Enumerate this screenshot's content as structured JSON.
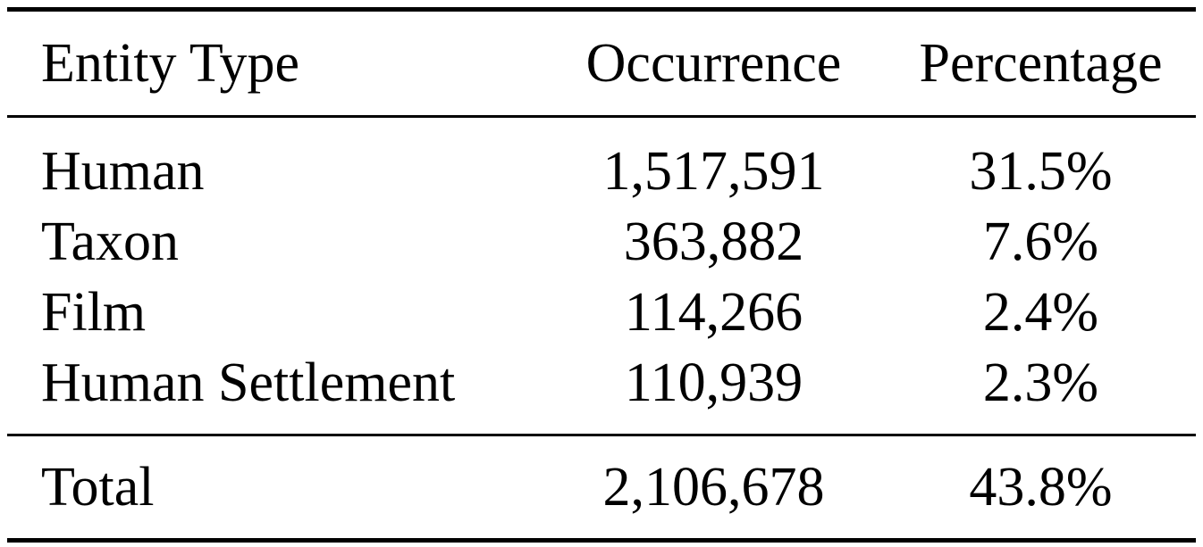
{
  "table": {
    "headers": {
      "entity_type": "Entity Type",
      "occurrence": "Occurrence",
      "percentage": "Percentage"
    },
    "rows": [
      {
        "entity_type": "Human",
        "occurrence": "1,517,591",
        "percentage": "31.5%"
      },
      {
        "entity_type": "Taxon",
        "occurrence": "363,882",
        "percentage": "7.6%"
      },
      {
        "entity_type": "Film",
        "occurrence": "114,266",
        "percentage": "2.4%"
      },
      {
        "entity_type": "Human Settlement",
        "occurrence": "110,939",
        "percentage": "2.3%"
      }
    ],
    "total": {
      "entity_type": "Total",
      "occurrence": "2,106,678",
      "percentage": "43.8%"
    }
  }
}
